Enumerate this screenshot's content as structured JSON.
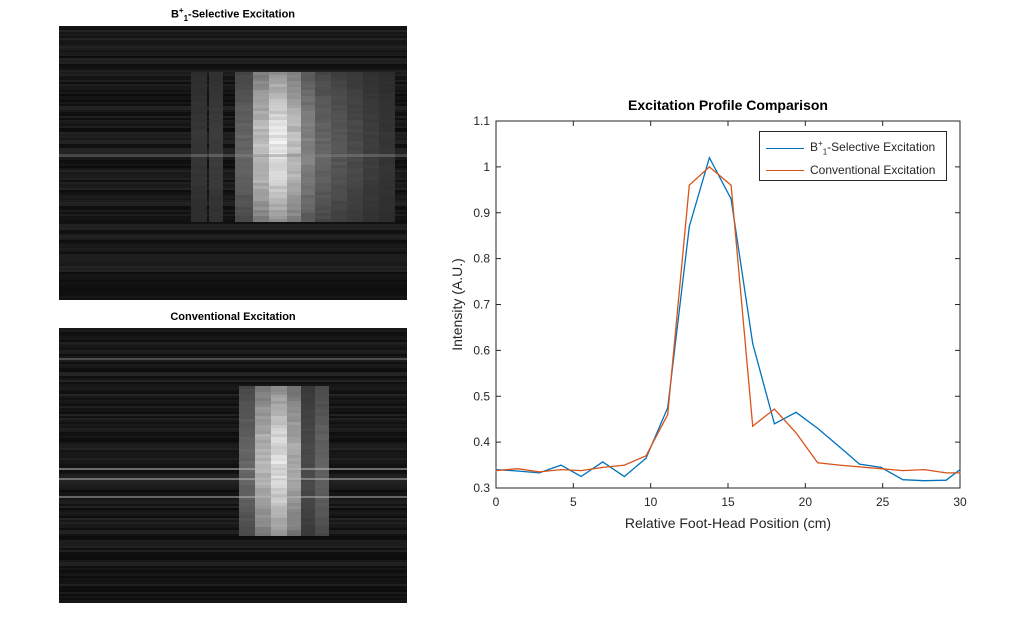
{
  "images": [
    {
      "title_base": "B",
      "title_sup": "+",
      "title_sub": "1",
      "title_rest": "-Selective Excitation",
      "kind": "selective"
    },
    {
      "title": "Conventional Excitation",
      "kind": "conventional"
    }
  ],
  "chart_data": {
    "type": "line",
    "title": "Excitation Profile Comparison",
    "xlabel": "Relative Foot-Head Position (cm)",
    "ylabel": "Intensity (A.U.)",
    "xlim": [
      0,
      30
    ],
    "ylim": [
      0.3,
      1.1
    ],
    "xticks": [
      0,
      5,
      10,
      15,
      20,
      25,
      30
    ],
    "yticks": [
      0.3,
      0.4,
      0.5,
      0.6,
      0.7,
      0.8,
      0.9,
      1,
      1.1
    ],
    "legend_position": "top-right",
    "series": [
      {
        "name": "B1+-Selective Excitation",
        "label_base": "B",
        "label_sup": "+",
        "label_sub": "1",
        "label_rest": "-Selective Excitation",
        "color": "#0072BD",
        "x": [
          0,
          1.4,
          2.8,
          4.2,
          5.5,
          6.9,
          8.3,
          9.7,
          11.1,
          12.5,
          13.8,
          15.2,
          16.6,
          18.0,
          19.4,
          20.8,
          22.2,
          23.5,
          24.9,
          26.3,
          27.7,
          29.1,
          30.0
        ],
        "values": [
          0.34,
          0.337,
          0.333,
          0.35,
          0.325,
          0.357,
          0.325,
          0.365,
          0.475,
          0.87,
          1.02,
          0.93,
          0.615,
          0.44,
          0.465,
          0.43,
          0.39,
          0.352,
          0.345,
          0.318,
          0.316,
          0.317,
          0.34
        ]
      },
      {
        "name": "Conventional Excitation",
        "label": "Conventional Excitation",
        "color": "#D95319",
        "x": [
          0,
          1.4,
          2.8,
          4.2,
          5.5,
          6.9,
          8.3,
          9.7,
          11.1,
          12.5,
          13.8,
          15.2,
          16.6,
          18.0,
          19.4,
          20.8,
          22.2,
          23.5,
          24.9,
          26.3,
          27.7,
          29.1,
          30.0
        ],
        "values": [
          0.338,
          0.342,
          0.335,
          0.34,
          0.338,
          0.345,
          0.35,
          0.37,
          0.46,
          0.96,
          1.0,
          0.96,
          0.435,
          0.472,
          0.42,
          0.355,
          0.35,
          0.346,
          0.342,
          0.338,
          0.34,
          0.333,
          0.333
        ]
      }
    ]
  }
}
